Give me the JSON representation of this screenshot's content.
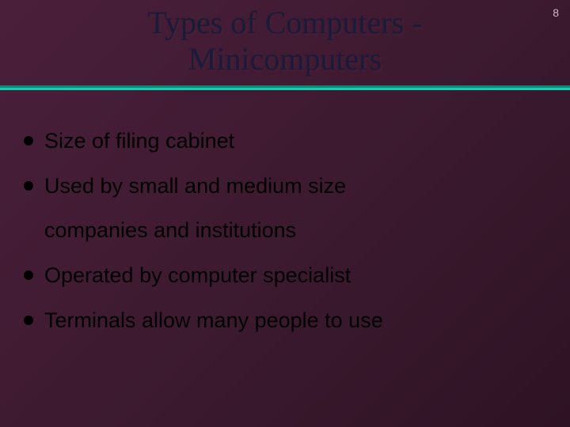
{
  "slide": {
    "page_number": "8",
    "title_line1": "Types of Computers -",
    "title_line2": "Minicomputers",
    "bullets": [
      {
        "text": "Size of filing cabinet"
      },
      {
        "text": "Used by small and medium size",
        "continuation": "companies and institutions"
      },
      {
        "text": "Operated by computer specialist"
      },
      {
        "text": "Terminals allow many people to use"
      }
    ],
    "colors": {
      "background_start": "#4a1f3a",
      "background_end": "#2e1324",
      "title_color": "#1a1a3a",
      "divider_top": "#0a8878",
      "divider_bottom": "#20c8b0",
      "bullet_text": "#000000",
      "bullet_dot": "#000000",
      "page_number": "#d0b8c5"
    },
    "typography": {
      "title_font": "Times New Roman",
      "title_size_pt": 40,
      "body_font": "Arial",
      "body_size_pt": 27,
      "page_number_size_pt": 14
    }
  }
}
